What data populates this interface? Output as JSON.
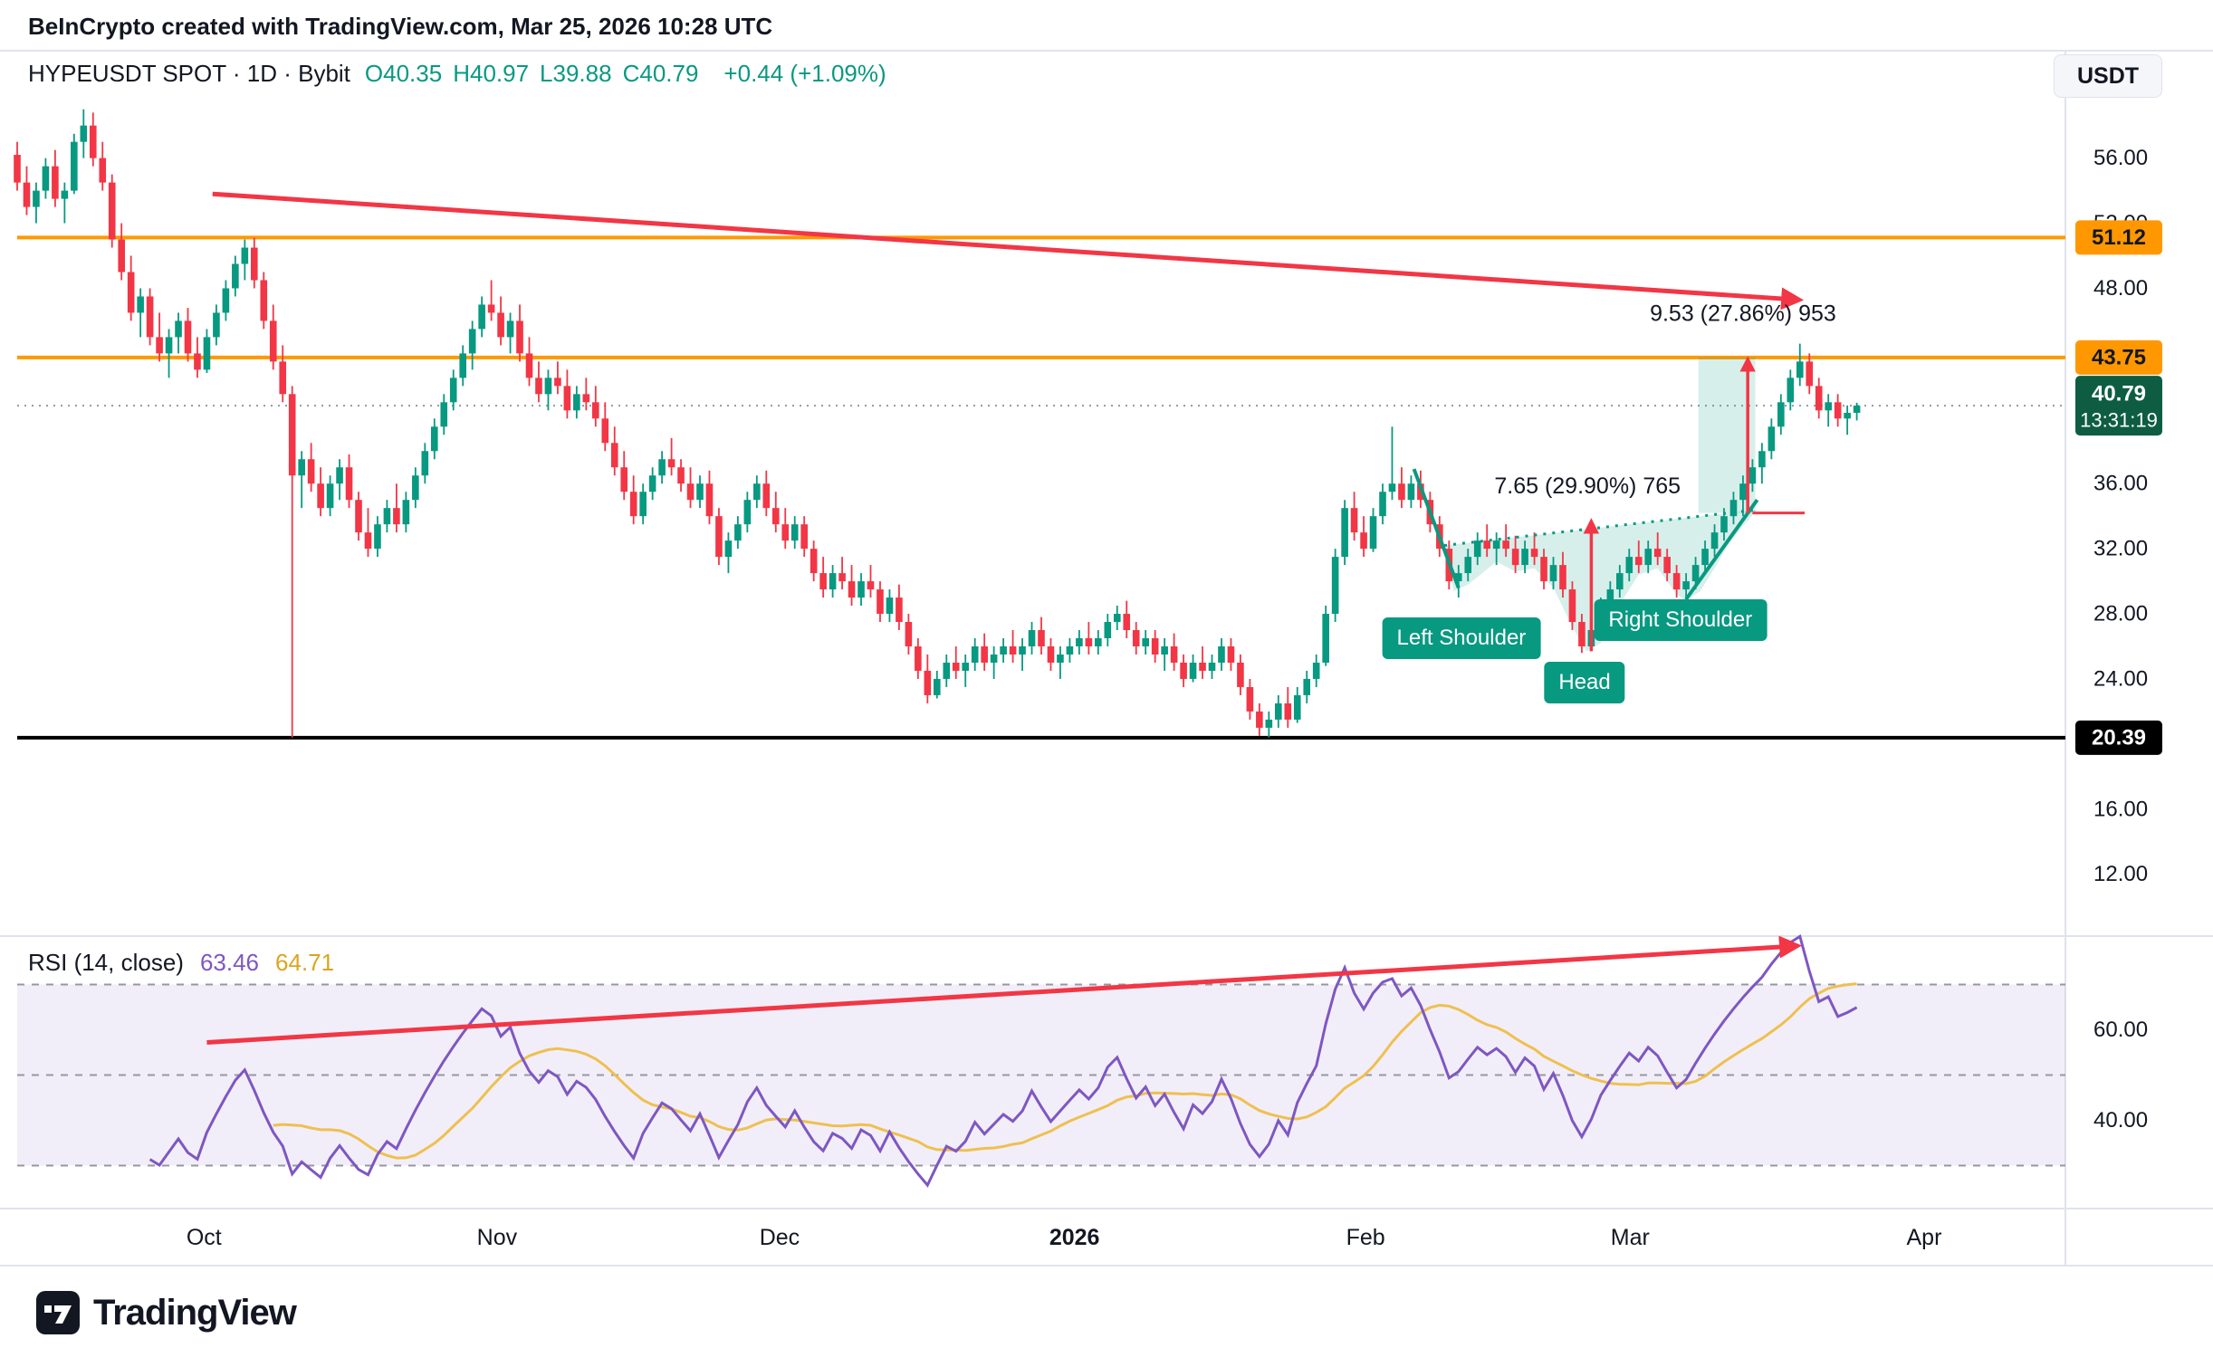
{
  "header": {
    "text": "BeInCrypto created with TradingView.com, Mar 25, 2026 10:28 UTC"
  },
  "legend": {
    "title": "HYPEUSDT SPOT · 1D · Bybit",
    "ohlc": [
      {
        "label": "O",
        "value": "40.35"
      },
      {
        "label": "H",
        "value": "40.97"
      },
      {
        "label": "L",
        "value": "39.88"
      },
      {
        "label": "C",
        "value": "40.79"
      }
    ],
    "change": "+0.44 (+1.09%)"
  },
  "currency_button": {
    "label": "USDT"
  },
  "footer": {
    "brand": "TradingView"
  },
  "rsi_panel": {
    "label": "RSI (14, close)",
    "value1": "63.46",
    "value2": "64.71",
    "levels": [
      70,
      50,
      30
    ],
    "axis_labels": [
      {
        "text": "60.00",
        "value": 60
      },
      {
        "text": "40.00",
        "value": 40
      }
    ],
    "trendline": {
      "d1": 20,
      "r1": 57.2,
      "d2": 187.5,
      "r2": 78.5
    }
  },
  "price_axis": {
    "labels": [
      {
        "text": "56.00",
        "price": 56
      },
      {
        "text": "52.00",
        "price": 52
      },
      {
        "text": "48.00",
        "price": 48
      },
      {
        "text": "36.00",
        "price": 36
      },
      {
        "text": "32.00",
        "price": 32
      },
      {
        "text": "28.00",
        "price": 28
      },
      {
        "text": "24.00",
        "price": 24
      },
      {
        "text": "16.00",
        "price": 16
      },
      {
        "text": "12.00",
        "price": 12
      }
    ],
    "badges": [
      {
        "text": "51.12",
        "price": 51.12,
        "bg": "#FF9800",
        "fg": "#131722"
      },
      {
        "text": "43.75",
        "price": 43.75,
        "bg": "#FF9800",
        "fg": "#131722"
      },
      {
        "text": "40.79",
        "sub": "13:31:19",
        "price": 40.79,
        "bg": "#0E5D43",
        "fg": "#FFFFFF"
      },
      {
        "text": "20.39",
        "price": 20.39,
        "bg": "#000000",
        "fg": "#FFFFFF"
      }
    ]
  },
  "time_axis": {
    "months": [
      {
        "label": "Oct",
        "day": 19.7
      },
      {
        "label": "Nov",
        "day": 50.6
      },
      {
        "label": "Dec",
        "day": 80.4
      },
      {
        "label": "2026",
        "day": 111.5,
        "bold": true
      },
      {
        "label": "Feb",
        "day": 142.2
      },
      {
        "label": "Mar",
        "day": 170.1
      },
      {
        "label": "Apr",
        "day": 201.1
      }
    ]
  },
  "chart_data": {
    "type": "candlestick",
    "title": "HYPEUSDT SPOT · 1D · Bybit",
    "day_span": 216,
    "ylim": [
      8.2,
      62.6
    ],
    "last": {
      "open": 40.35,
      "high": 40.97,
      "low": 39.88,
      "close": 40.79,
      "change_abs": 0.44,
      "change_pct": 1.09,
      "countdown": "13:31:19"
    },
    "levels": {
      "resistance1": 51.12,
      "resistance2": 43.75,
      "support": 20.39,
      "last_price": 40.79
    },
    "trendline": {
      "d1": 20.6,
      "p1": 53.8,
      "d2": 187.7,
      "p2": 47.3
    },
    "candles": [
      [
        56.2,
        57,
        54,
        54.5
      ],
      [
        54.5,
        55.5,
        52.5,
        53
      ],
      [
        53,
        54.5,
        52,
        54
      ],
      [
        54,
        56,
        53.5,
        55.5
      ],
      [
        55.5,
        56.5,
        53,
        53.5
      ],
      [
        53.5,
        54.5,
        52,
        54
      ],
      [
        54,
        57.5,
        53.8,
        57
      ],
      [
        57,
        59,
        56,
        58
      ],
      [
        58,
        58.8,
        55.5,
        56
      ],
      [
        56,
        57,
        54,
        54.5
      ],
      [
        54.5,
        55,
        50.5,
        51
      ],
      [
        51,
        52,
        48.5,
        49
      ],
      [
        49,
        50,
        46,
        46.5
      ],
      [
        46.5,
        48,
        45,
        47.5
      ],
      [
        47.5,
        48,
        44.5,
        45
      ],
      [
        45,
        46.5,
        43.5,
        44
      ],
      [
        44,
        45.5,
        42.5,
        45
      ],
      [
        45,
        46.5,
        44,
        46
      ],
      [
        46,
        46.8,
        43.5,
        44
      ],
      [
        44,
        45,
        42.5,
        43
      ],
      [
        43,
        45.5,
        42.8,
        45
      ],
      [
        45,
        47,
        44.5,
        46.5
      ],
      [
        46.5,
        48.5,
        46,
        48
      ],
      [
        48,
        50,
        47.5,
        49.5
      ],
      [
        49.5,
        51,
        48.5,
        50.5
      ],
      [
        50.5,
        51.1,
        48,
        48.5
      ],
      [
        48.5,
        49,
        45.5,
        46
      ],
      [
        46,
        47,
        43,
        43.5
      ],
      [
        43.5,
        44.5,
        41,
        41.5
      ],
      [
        41.5,
        42,
        20.4,
        36.5
      ],
      [
        36.5,
        38,
        34.5,
        37.5
      ],
      [
        37.5,
        38.5,
        35.5,
        36
      ],
      [
        36,
        37,
        34,
        34.5
      ],
      [
        34.5,
        36.5,
        34,
        36
      ],
      [
        36,
        37.5,
        35,
        37
      ],
      [
        37,
        37.8,
        34.5,
        35
      ],
      [
        35,
        35.5,
        32.5,
        33
      ],
      [
        33,
        34.5,
        31.5,
        32
      ],
      [
        32,
        34,
        31.5,
        33.5
      ],
      [
        33.5,
        35,
        33,
        34.5
      ],
      [
        34.5,
        36,
        33,
        33.5
      ],
      [
        33.5,
        35.5,
        33,
        35
      ],
      [
        35,
        37,
        34.5,
        36.5
      ],
      [
        36.5,
        38.5,
        36,
        38
      ],
      [
        38,
        40,
        37.5,
        39.5
      ],
      [
        39.5,
        41.5,
        39,
        41
      ],
      [
        41,
        43,
        40.5,
        42.5
      ],
      [
        42.5,
        44.5,
        42,
        44
      ],
      [
        44,
        46,
        43,
        45.5
      ],
      [
        45.5,
        47.5,
        45,
        47
      ],
      [
        47,
        48.5,
        46,
        46.5
      ],
      [
        46.5,
        47.5,
        44.5,
        45
      ],
      [
        45,
        46.5,
        44,
        46
      ],
      [
        46,
        47,
        43.5,
        44
      ],
      [
        44,
        45,
        42,
        42.5
      ],
      [
        42.5,
        43.5,
        41,
        41.5
      ],
      [
        41.5,
        43,
        40.5,
        42.5
      ],
      [
        42.5,
        43.5,
        41.5,
        42
      ],
      [
        42,
        43,
        40,
        40.5
      ],
      [
        40.5,
        42,
        40,
        41.5
      ],
      [
        41.5,
        42.5,
        40.5,
        41
      ],
      [
        41,
        42,
        39.5,
        40
      ],
      [
        40,
        41,
        38,
        38.5
      ],
      [
        38.5,
        39.5,
        36.5,
        37
      ],
      [
        37,
        38,
        35,
        35.5
      ],
      [
        35.5,
        36.5,
        33.5,
        34
      ],
      [
        34,
        36,
        33.5,
        35.5
      ],
      [
        35.5,
        37,
        35,
        36.5
      ],
      [
        36.5,
        38,
        36,
        37.5
      ],
      [
        37.5,
        38.8,
        36.5,
        37
      ],
      [
        37,
        37.5,
        35.5,
        36
      ],
      [
        36,
        37,
        34.5,
        35
      ],
      [
        35,
        36.5,
        34.5,
        36
      ],
      [
        36,
        36.8,
        33.5,
        34
      ],
      [
        34,
        34.5,
        31,
        31.5
      ],
      [
        31.5,
        33,
        30.5,
        32.5
      ],
      [
        32.5,
        34,
        32,
        33.5
      ],
      [
        33.5,
        35.5,
        33,
        35
      ],
      [
        35,
        36.5,
        34.5,
        36
      ],
      [
        36,
        36.8,
        34,
        34.5
      ],
      [
        34.5,
        35.5,
        33,
        33.5
      ],
      [
        33.5,
        34.5,
        32,
        32.5
      ],
      [
        32.5,
        34,
        32,
        33.5
      ],
      [
        33.5,
        34,
        31.5,
        32
      ],
      [
        32,
        32.5,
        30,
        30.5
      ],
      [
        30.5,
        31.5,
        29,
        29.5
      ],
      [
        29.5,
        31,
        29,
        30.5
      ],
      [
        30.5,
        31.5,
        29.5,
        30
      ],
      [
        30,
        31,
        28.5,
        29
      ],
      [
        29,
        30.5,
        28.5,
        30
      ],
      [
        30,
        31,
        29,
        29.5
      ],
      [
        29.5,
        30,
        27.5,
        28
      ],
      [
        28,
        29.5,
        27.5,
        29
      ],
      [
        29,
        29.8,
        27,
        27.5
      ],
      [
        27.5,
        28,
        25.5,
        26
      ],
      [
        26,
        26.5,
        24,
        24.5
      ],
      [
        24.5,
        25.5,
        22.5,
        23
      ],
      [
        23,
        24.5,
        22.8,
        24
      ],
      [
        24,
        25.5,
        23.5,
        25
      ],
      [
        25,
        26,
        24,
        24.5
      ],
      [
        24.5,
        25.5,
        23.5,
        25
      ],
      [
        25,
        26.5,
        24.5,
        26
      ],
      [
        26,
        26.8,
        24.5,
        25
      ],
      [
        25,
        26,
        24,
        25.5
      ],
      [
        25.5,
        26.5,
        25,
        26
      ],
      [
        26,
        27,
        25,
        25.5
      ],
      [
        25.5,
        26.5,
        24.5,
        26
      ],
      [
        26,
        27.5,
        25.5,
        27
      ],
      [
        27,
        27.8,
        25.5,
        26
      ],
      [
        26,
        26.5,
        24.5,
        25
      ],
      [
        25,
        26,
        24,
        25.5
      ],
      [
        25.5,
        26.5,
        25,
        26
      ],
      [
        26,
        27,
        25.5,
        26.5
      ],
      [
        26.5,
        27.5,
        25.5,
        26
      ],
      [
        26,
        27,
        25.5,
        26.5
      ],
      [
        26.5,
        28,
        26,
        27.5
      ],
      [
        27.5,
        28.5,
        27,
        28
      ],
      [
        28,
        28.8,
        26.5,
        27
      ],
      [
        27,
        27.5,
        25.5,
        26
      ],
      [
        26,
        27,
        25.5,
        26.5
      ],
      [
        26.5,
        27,
        25,
        25.5
      ],
      [
        25.5,
        26.5,
        24.5,
        26
      ],
      [
        26,
        26.8,
        24.5,
        25
      ],
      [
        25,
        25.5,
        23.5,
        24
      ],
      [
        24,
        25.5,
        23.8,
        25
      ],
      [
        25,
        26,
        24,
        24.5
      ],
      [
        24.5,
        25.5,
        24,
        25
      ],
      [
        25,
        26.5,
        24.5,
        26
      ],
      [
        26,
        26.5,
        24.5,
        25
      ],
      [
        25,
        25.5,
        23,
        23.5
      ],
      [
        23.5,
        24,
        21.5,
        22
      ],
      [
        22,
        22.5,
        20.5,
        21
      ],
      [
        21,
        22,
        20.4,
        21.5
      ],
      [
        21.5,
        23,
        21,
        22.5
      ],
      [
        22.5,
        23.5,
        21,
        21.5
      ],
      [
        21.5,
        23.5,
        21.3,
        23
      ],
      [
        23,
        24.5,
        22.5,
        24
      ],
      [
        24,
        25.5,
        23.5,
        25
      ],
      [
        25,
        28.5,
        24.8,
        28
      ],
      [
        28,
        32,
        27.5,
        31.5
      ],
      [
        31.5,
        35,
        31,
        34.5
      ],
      [
        34.5,
        35.5,
        32.5,
        33
      ],
      [
        33,
        34,
        31.5,
        32
      ],
      [
        32,
        34.5,
        31.8,
        34
      ],
      [
        34,
        36,
        33.5,
        35.5
      ],
      [
        35.5,
        39.5,
        35,
        36
      ],
      [
        36,
        37,
        34.5,
        35
      ],
      [
        35,
        36.5,
        34.5,
        36
      ],
      [
        36,
        36.8,
        34.5,
        35
      ],
      [
        35,
        35.5,
        33,
        33.5
      ],
      [
        33.5,
        34,
        31.5,
        32
      ],
      [
        32,
        32.5,
        29.5,
        30
      ],
      [
        30,
        31,
        29,
        30.5
      ],
      [
        30.5,
        32,
        30,
        31.5
      ],
      [
        31.5,
        33,
        31,
        32.5
      ],
      [
        32.5,
        33.5,
        31.5,
        32
      ],
      [
        32,
        33,
        31,
        32.5
      ],
      [
        32.5,
        33.5,
        31.5,
        32
      ],
      [
        32,
        32.8,
        30.5,
        31
      ],
      [
        31,
        32.5,
        30.5,
        32
      ],
      [
        32,
        33,
        31,
        31.5
      ],
      [
        31.5,
        32,
        29.5,
        30
      ],
      [
        30,
        31.5,
        29.5,
        31
      ],
      [
        31,
        31.8,
        29,
        29.5
      ],
      [
        29.5,
        30,
        27,
        27.5
      ],
      [
        27.5,
        28,
        25.6,
        26
      ],
      [
        26,
        27.5,
        25.8,
        27
      ],
      [
        27,
        29,
        26.5,
        28.5
      ],
      [
        28.5,
        30,
        28,
        29.5
      ],
      [
        29.5,
        31,
        29,
        30.5
      ],
      [
        30.5,
        32,
        30,
        31.5
      ],
      [
        31.5,
        32.5,
        30.5,
        31
      ],
      [
        31,
        32.5,
        30.5,
        32
      ],
      [
        32,
        33,
        31,
        31.5
      ],
      [
        31.5,
        32,
        30,
        30.5
      ],
      [
        30.5,
        31,
        29,
        29.5
      ],
      [
        29.5,
        30.5,
        28.8,
        30
      ],
      [
        30,
        31.5,
        29.5,
        31
      ],
      [
        31,
        32.5,
        30.5,
        32
      ],
      [
        32,
        33.5,
        31.5,
        33
      ],
      [
        33,
        34.5,
        32.5,
        34
      ],
      [
        34,
        35.5,
        33.5,
        35
      ],
      [
        35,
        36.5,
        34,
        36
      ],
      [
        36,
        37.5,
        35.5,
        37
      ],
      [
        37,
        38.5,
        36,
        38
      ],
      [
        38,
        40,
        37.5,
        39.5
      ],
      [
        39.5,
        41.5,
        39,
        41
      ],
      [
        41,
        43,
        40.5,
        42.5
      ],
      [
        42.5,
        44.6,
        42,
        43.5
      ],
      [
        43.5,
        44,
        41.5,
        42
      ],
      [
        42,
        42.5,
        40,
        40.5
      ],
      [
        40.5,
        41.5,
        39.5,
        41
      ],
      [
        41,
        41.5,
        39.5,
        40
      ],
      [
        40,
        40.8,
        39,
        40.35
      ],
      [
        40.35,
        40.97,
        39.88,
        40.79
      ]
    ],
    "pattern": {
      "name": "inverse-head-and-shoulders",
      "left_line": {
        "d1": 147.3,
        "p1": 36.9,
        "d2": 152,
        "p2": 29.6
      },
      "right_line": {
        "d1": 176,
        "p1": 28.9,
        "d2": 183.5,
        "p2": 35.0
      },
      "neckline": {
        "d1": 150.5,
        "p1": 32.2,
        "d2": 183.5,
        "p2": 34.4
      },
      "area": [
        [
          150.5,
          32.2
        ],
        [
          151.5,
          29.4
        ],
        [
          153,
          29.8
        ],
        [
          156,
          31.2
        ],
        [
          158,
          30.6
        ],
        [
          160,
          30.8
        ],
        [
          162,
          29.6
        ],
        [
          164,
          27.2
        ],
        [
          165.5,
          25.7
        ],
        [
          167,
          26.2
        ],
        [
          169,
          28.6
        ],
        [
          171,
          30.4
        ],
        [
          173,
          30.8
        ],
        [
          175,
          29.2
        ],
        [
          176,
          28.8
        ],
        [
          177.5,
          29.4
        ],
        [
          179,
          30.8
        ],
        [
          180.5,
          32.3
        ],
        [
          182,
          33.4
        ],
        [
          183.5,
          34.4
        ]
      ],
      "projection": {
        "d1": 177.3,
        "d2": 183.3,
        "p1": 34.2,
        "p2": 43.75
      },
      "labels": [
        {
          "text": "Left Shoulder",
          "day": 152.3,
          "price": 26.5
        },
        {
          "text": "Head",
          "day": 165.3,
          "price": 23.8
        },
        {
          "text": "Right Shoulder",
          "day": 175.4,
          "price": 27.6
        }
      ],
      "arrows": [
        {
          "day": 166,
          "p1": 25.7,
          "p2": 33.6
        },
        {
          "day": 182.5,
          "p1": 34.2,
          "p2": 43.55
        }
      ],
      "tick": {
        "d1": 183,
        "d2": 188.5,
        "price": 34.2
      },
      "measures": [
        {
          "text": "9.53 (27.86%) 953",
          "day": 182,
          "price": 46.0
        },
        {
          "text": "7.65 (29.90%) 765",
          "day": 165.6,
          "price": 35.4
        }
      ]
    },
    "colors": {
      "up": "#089981",
      "down": "#F23645",
      "trend": "#F23645",
      "orange": "#FF9800",
      "support_black": "#000000",
      "pattern": "#089981",
      "pattern_fill": "rgba(8,153,129,0.16)",
      "last_line": "#9598A1",
      "rsi_line": "#7E57C2",
      "rsi_ma": "#EFC050",
      "rsi_band": "rgba(126,87,194,0.10)",
      "rsi_dash": "#9598A1"
    }
  }
}
